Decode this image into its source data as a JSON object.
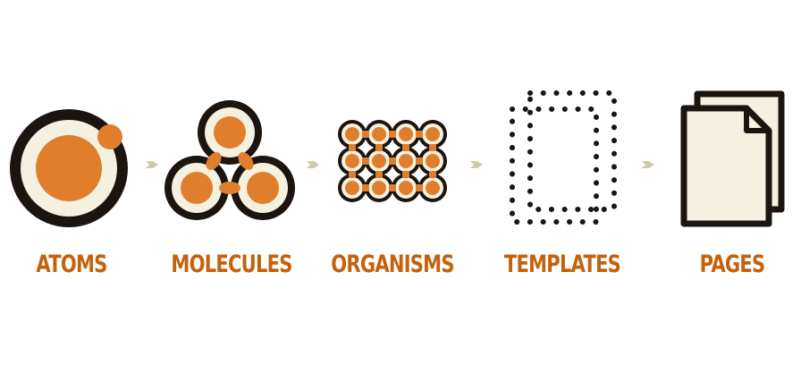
{
  "colors": {
    "orange": "#e07e2c",
    "dark": "#1b1410",
    "cream": "#f4f1e0",
    "label": "#c4620c",
    "arrow": "#cfcba9"
  },
  "stages": [
    {
      "label": "ATOMS",
      "icon": "atom-icon"
    },
    {
      "label": "MOLECULES",
      "icon": "molecule-icon"
    },
    {
      "label": "ORGANISMS",
      "icon": "organism-icon"
    },
    {
      "label": "TEMPLATES",
      "icon": "template-icon"
    },
    {
      "label": "PAGES",
      "icon": "pages-icon"
    }
  ]
}
